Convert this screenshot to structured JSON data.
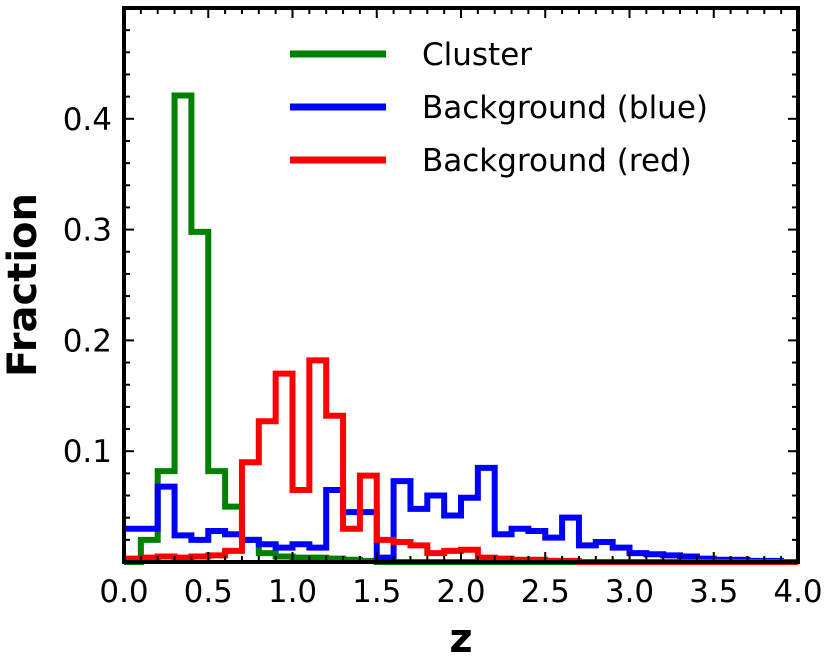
{
  "chart_data": {
    "type": "step-histogram",
    "xlabel": "z",
    "ylabel": "Fraction",
    "xlim": [
      0.0,
      4.0
    ],
    "ylim": [
      0.0,
      0.5
    ],
    "x_ticks": [
      "0.0",
      "0.5",
      "1.0",
      "1.5",
      "2.0",
      "2.5",
      "3.0",
      "3.5",
      "4.0"
    ],
    "y_ticks": [
      "0.1",
      "0.2",
      "0.3",
      "0.4"
    ],
    "grid": false,
    "legend_position": "top-right",
    "bin_edges": [
      0.0,
      0.1,
      0.2,
      0.3,
      0.4,
      0.5,
      0.6,
      0.7,
      0.8,
      0.9,
      1.0,
      1.1,
      1.2,
      1.3,
      1.4,
      1.5,
      1.6,
      1.7,
      1.8,
      1.9,
      2.0,
      2.1,
      2.2,
      2.3,
      2.4,
      2.5,
      2.6,
      2.7,
      2.8,
      2.9,
      3.0,
      3.1,
      3.2,
      3.3,
      3.4,
      3.5,
      3.6,
      3.7,
      3.8,
      3.9,
      4.0
    ],
    "series": [
      {
        "name": "Cluster",
        "color": "#008000",
        "values": [
          0.0,
          0.02,
          0.082,
          0.421,
          0.298,
          0.082,
          0.05,
          0.02,
          0.008,
          0.005,
          0.004,
          0.004,
          0.003,
          0.002,
          0.001,
          0.0,
          0.0,
          0.0,
          0.0,
          0.0,
          0.0,
          0.0,
          0.0,
          0.0,
          0.0,
          0.0,
          0.0,
          0.0,
          0.0,
          0.0,
          0.0,
          0.0,
          0.0,
          0.0,
          0.0,
          0.0,
          0.0,
          0.0,
          0.0,
          0.0
        ]
      },
      {
        "name": "Background (blue)",
        "color": "#0000ff",
        "values": [
          0.03,
          0.03,
          0.068,
          0.024,
          0.02,
          0.028,
          0.025,
          0.02,
          0.016,
          0.013,
          0.016,
          0.013,
          0.065,
          0.045,
          0.045,
          0.004,
          0.073,
          0.048,
          0.06,
          0.042,
          0.058,
          0.085,
          0.025,
          0.03,
          0.028,
          0.022,
          0.04,
          0.015,
          0.018,
          0.013,
          0.008,
          0.007,
          0.006,
          0.005,
          0.003,
          0.002,
          0.002,
          0.001,
          0.001,
          0.0
        ]
      },
      {
        "name": "Background (red)",
        "color": "#ff0000",
        "values": [
          0.003,
          0.004,
          0.005,
          0.004,
          0.005,
          0.006,
          0.01,
          0.09,
          0.127,
          0.17,
          0.065,
          0.182,
          0.132,
          0.03,
          0.078,
          0.02,
          0.018,
          0.015,
          0.008,
          0.01,
          0.011,
          0.004,
          0.003,
          0.002,
          0.002,
          0.001,
          0.001,
          0.0,
          0.0,
          0.0,
          0.0,
          0.0,
          0.0,
          0.0,
          0.0,
          0.0,
          0.0,
          0.0,
          0.0,
          0.0
        ]
      }
    ]
  }
}
